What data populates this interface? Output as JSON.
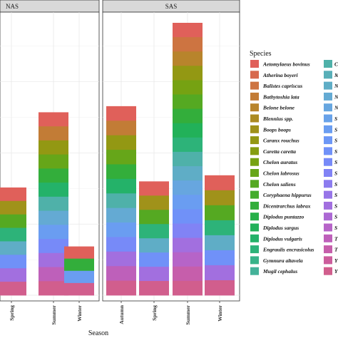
{
  "chart_data": {
    "type": "bar",
    "stacked": true,
    "xlabel": "Season",
    "ylabel": "",
    "ylim": [
      0,
      140
    ],
    "grid": true,
    "legend_position": "right",
    "legend_title": "Species",
    "panels": [
      {
        "strip": "NAS",
        "categories": [
          "Spring",
          "Summer",
          "Winter"
        ],
        "totals": [
          53,
          90,
          24
        ]
      },
      {
        "strip": "SAS",
        "categories": [
          "Autumn",
          "Spring",
          "Summer",
          "Winter"
        ],
        "totals": [
          93,
          56,
          134,
          59
        ]
      }
    ],
    "legend_entries": [
      {
        "label": "Aetomylaeus bovinus",
        "color": "#e0605a"
      },
      {
        "label": "Atherina boyeri",
        "color": "#d76a4e"
      },
      {
        "label": "Balistes capriscus",
        "color": "#cd7441"
      },
      {
        "label": "Bathytoshia lata",
        "color": "#c27c36"
      },
      {
        "label": "Belone belone",
        "color": "#b8842c"
      },
      {
        "label": "Blennius spp.",
        "color": "#ac8b22"
      },
      {
        "label": "Boops boops",
        "color": "#a0921a"
      },
      {
        "label": "Caranx rouchus",
        "color": "#939813"
      },
      {
        "label": "Caretta caretta",
        "color": "#859d10"
      },
      {
        "label": "Chelon auratus",
        "color": "#76a212"
      },
      {
        "label": "Chelon labrosus",
        "color": "#66a619"
      },
      {
        "label": "Chelon saliens",
        "color": "#55a922"
      },
      {
        "label": "Coryphaena hippurus",
        "color": "#44ac2e"
      },
      {
        "label": "Dicentrarchus labrax",
        "color": "#33ae3b"
      },
      {
        "label": "Diplodus puntazzo",
        "color": "#27b04a"
      },
      {
        "label": "Diplodus sargus",
        "color": "#22b159"
      },
      {
        "label": "Diplodus vulgaris",
        "color": "#24b269"
      },
      {
        "label": "Engraulis encrasicolus",
        "color": "#2db379"
      },
      {
        "label": "Gymnura altavela",
        "color": "#38b389"
      },
      {
        "label": "Mugil cephalus",
        "color": "#44b299"
      }
    ],
    "legend_entries_col2_clipped": [
      {
        "label": "C",
        "color": "#4fb1a9"
      },
      {
        "label": "M",
        "color": "#58afb8"
      },
      {
        "label": "N",
        "color": "#5fadc6"
      },
      {
        "label": "N",
        "color": "#64aad3"
      },
      {
        "label": "N",
        "color": "#67a6df"
      },
      {
        "label": "S",
        "color": "#68a2e9"
      },
      {
        "label": "S",
        "color": "#6a9df1"
      },
      {
        "label": "S",
        "color": "#6c97f6"
      },
      {
        "label": "S",
        "color": "#7091f8"
      },
      {
        "label": "S",
        "color": "#778af8"
      },
      {
        "label": "S",
        "color": "#8183f5"
      },
      {
        "label": "S",
        "color": "#8c7cef"
      },
      {
        "label": "S",
        "color": "#9775e8"
      },
      {
        "label": "S",
        "color": "#a26fdf"
      },
      {
        "label": "S",
        "color": "#ac69d4"
      },
      {
        "label": "S",
        "color": "#b664c8"
      },
      {
        "label": "T",
        "color": "#be60ba"
      },
      {
        "label": "T",
        "color": "#c65eab"
      },
      {
        "label": "Y",
        "color": "#cc5d9c"
      },
      {
        "label": "Y",
        "color": "#d15e8d"
      }
    ]
  }
}
